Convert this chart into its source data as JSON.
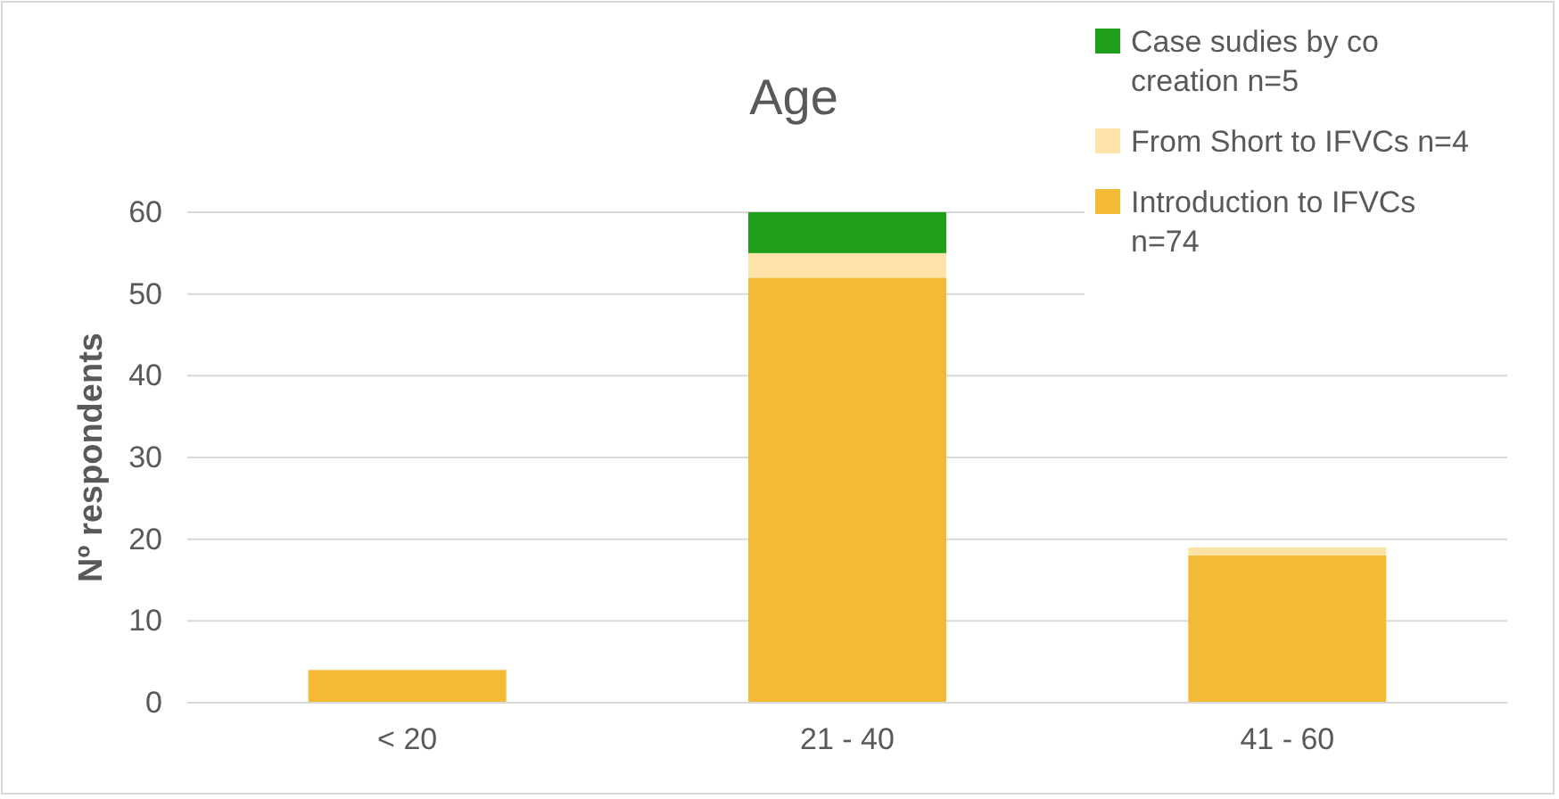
{
  "chart_data": {
    "type": "bar",
    "title": "Age",
    "ylabel": "Nº respondents",
    "categories": [
      "< 20",
      "21 - 40",
      "41 - 60"
    ],
    "stacked": true,
    "series": [
      {
        "name": "Introduction to IFVCs n=74",
        "color": "#f4b935",
        "values": [
          4,
          52,
          18
        ]
      },
      {
        "name": "From Short to IFVCs n=4",
        "color": "#fde3a7",
        "values": [
          0,
          3,
          1
        ]
      },
      {
        "name": "Case sudies by co creation n=5",
        "color": "#1e9e1a",
        "values": [
          0,
          5,
          0
        ]
      }
    ],
    "ylim": [
      0,
      60
    ],
    "yticks": [
      0,
      10,
      20,
      30,
      40,
      50,
      60
    ],
    "grid": "y",
    "legend": "top right"
  }
}
